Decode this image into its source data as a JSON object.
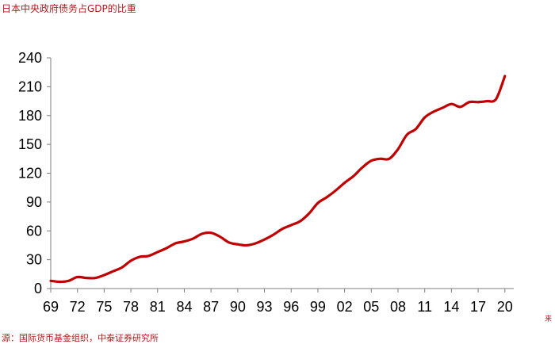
{
  "header": {
    "title": "日本中央政府债务占GDP的比重"
  },
  "footer": {
    "source": "源：国际货币基金组织，中泰证券研究所",
    "corner_mark": "来"
  },
  "colors": {
    "series": "#c00000",
    "axis": "#7f7f7f",
    "text_accent": "#b8181c"
  },
  "chart_data": {
    "type": "line",
    "title": "日本中央政府债务占GDP的比重",
    "xlabel": "",
    "ylabel": "",
    "xlim": [
      1969,
      2021
    ],
    "ylim": [
      0,
      240
    ],
    "yticks": [
      0,
      30,
      60,
      90,
      120,
      150,
      180,
      210,
      240
    ],
    "xtick_years": [
      1969,
      1972,
      1975,
      1978,
      1981,
      1984,
      1987,
      1990,
      1993,
      1996,
      1999,
      2002,
      2005,
      2008,
      2011,
      2014,
      2017,
      2020
    ],
    "xtick_labels": [
      "69",
      "72",
      "75",
      "78",
      "81",
      "84",
      "87",
      "90",
      "93",
      "96",
      "99",
      "02",
      "05",
      "08",
      "11",
      "14",
      "17",
      "20"
    ],
    "grid": false,
    "series": [
      {
        "x": [
          1969,
          1970,
          1971,
          1972,
          1973,
          1974,
          1975,
          1976,
          1977,
          1978,
          1979,
          1980,
          1981,
          1982,
          1983,
          1984,
          1985,
          1986,
          1987,
          1988,
          1989,
          1990,
          1991,
          1992,
          1993,
          1994,
          1995,
          1996,
          1997,
          1998,
          1999,
          2000,
          2001,
          2002,
          2003,
          2004,
          2005,
          2006,
          2007,
          2008,
          2009,
          2010,
          2011,
          2012,
          2013,
          2014,
          2015,
          2016,
          2017,
          2018,
          2019,
          2020
        ],
        "values": [
          8,
          7,
          8,
          12,
          11,
          11,
          14,
          18,
          22,
          29,
          33,
          34,
          38,
          42,
          47,
          49,
          52,
          57,
          58,
          54,
          48,
          46,
          45,
          47,
          51,
          56,
          62,
          66,
          70,
          78,
          89,
          95,
          102,
          110,
          117,
          126,
          133,
          135,
          135,
          145,
          160,
          166,
          178,
          184,
          188,
          192,
          189,
          194,
          194,
          195,
          197,
          221
        ]
      }
    ]
  }
}
